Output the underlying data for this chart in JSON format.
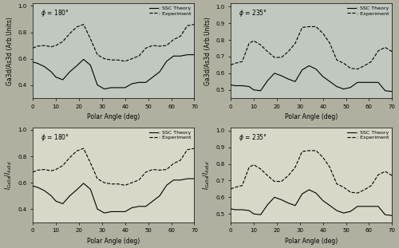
{
  "bg_color": "#b0b0a0",
  "top_bg": "#c0c8c0",
  "bottom_bg": "#d8d8c8",
  "panels": [
    {
      "phi": "180",
      "ylabel": "Ga3d/As3d (Arb.Units)",
      "ylim": [
        0.3,
        1.02
      ],
      "yticks": [
        0.4,
        0.6,
        0.8,
        1.0
      ],
      "row": 0,
      "col": 0,
      "theory_x": [
        0,
        2,
        5,
        8,
        10,
        13,
        16,
        19,
        22,
        25,
        28,
        31,
        34,
        37,
        40,
        43,
        46,
        49,
        52,
        55,
        58,
        61,
        64,
        67,
        70
      ],
      "theory_y": [
        0.575,
        0.565,
        0.54,
        0.5,
        0.46,
        0.44,
        0.5,
        0.545,
        0.595,
        0.55,
        0.4,
        0.37,
        0.38,
        0.38,
        0.38,
        0.41,
        0.42,
        0.42,
        0.46,
        0.5,
        0.58,
        0.62,
        0.62,
        0.63,
        0.63
      ],
      "exp_x": [
        0,
        2,
        5,
        8,
        10,
        13,
        16,
        19,
        22,
        25,
        28,
        31,
        34,
        37,
        40,
        43,
        46,
        49,
        52,
        55,
        58,
        61,
        64,
        67,
        70
      ],
      "exp_y": [
        0.68,
        0.695,
        0.7,
        0.69,
        0.7,
        0.73,
        0.79,
        0.84,
        0.86,
        0.75,
        0.63,
        0.6,
        0.59,
        0.59,
        0.58,
        0.6,
        0.62,
        0.68,
        0.7,
        0.695,
        0.7,
        0.745,
        0.77,
        0.85,
        0.86
      ]
    },
    {
      "phi": "235",
      "ylabel": "Ga3d/As3d (Arb.Units)",
      "ylim": [
        0.45,
        1.02
      ],
      "yticks": [
        0.5,
        0.6,
        0.7,
        0.8,
        0.9,
        1.0
      ],
      "row": 0,
      "col": 1,
      "theory_x": [
        0,
        2,
        5,
        8,
        10,
        13,
        16,
        19,
        22,
        25,
        28,
        31,
        34,
        37,
        40,
        43,
        46,
        49,
        52,
        55,
        58,
        61,
        64,
        67,
        70
      ],
      "theory_y": [
        0.53,
        0.525,
        0.525,
        0.52,
        0.5,
        0.495,
        0.555,
        0.6,
        0.585,
        0.565,
        0.55,
        0.62,
        0.645,
        0.625,
        0.58,
        0.55,
        0.52,
        0.505,
        0.515,
        0.545,
        0.545,
        0.545,
        0.545,
        0.495,
        0.49
      ],
      "exp_x": [
        0,
        2,
        5,
        8,
        10,
        13,
        16,
        19,
        22,
        25,
        28,
        31,
        34,
        37,
        40,
        43,
        46,
        49,
        52,
        55,
        58,
        61,
        64,
        67,
        70
      ],
      "exp_y": [
        0.65,
        0.66,
        0.67,
        0.78,
        0.795,
        0.77,
        0.73,
        0.695,
        0.695,
        0.73,
        0.78,
        0.875,
        0.88,
        0.88,
        0.84,
        0.78,
        0.68,
        0.66,
        0.63,
        0.625,
        0.645,
        0.67,
        0.735,
        0.755,
        0.73
      ]
    },
    {
      "phi": "180",
      "ylabel": "I_{Ga3d}/I_{As3d}",
      "ylim": [
        0.3,
        1.02
      ],
      "yticks": [
        0.4,
        0.6,
        0.8,
        1.0
      ],
      "row": 1,
      "col": 0,
      "theory_x": [
        0,
        2,
        5,
        8,
        10,
        13,
        16,
        19,
        22,
        25,
        28,
        31,
        34,
        37,
        40,
        43,
        46,
        49,
        52,
        55,
        58,
        61,
        64,
        67,
        70
      ],
      "theory_y": [
        0.575,
        0.565,
        0.54,
        0.5,
        0.46,
        0.44,
        0.5,
        0.545,
        0.595,
        0.55,
        0.4,
        0.37,
        0.38,
        0.38,
        0.38,
        0.41,
        0.42,
        0.42,
        0.46,
        0.5,
        0.58,
        0.62,
        0.62,
        0.63,
        0.63
      ],
      "exp_x": [
        0,
        2,
        5,
        8,
        10,
        13,
        16,
        19,
        22,
        25,
        28,
        31,
        34,
        37,
        40,
        43,
        46,
        49,
        52,
        55,
        58,
        61,
        64,
        67,
        70
      ],
      "exp_y": [
        0.68,
        0.695,
        0.7,
        0.69,
        0.7,
        0.73,
        0.79,
        0.84,
        0.86,
        0.75,
        0.63,
        0.6,
        0.59,
        0.59,
        0.58,
        0.6,
        0.62,
        0.68,
        0.7,
        0.695,
        0.7,
        0.745,
        0.77,
        0.85,
        0.86
      ]
    },
    {
      "phi": "235",
      "ylabel": "I_{Ga3d}/I_{As3d}",
      "ylim": [
        0.45,
        1.02
      ],
      "yticks": [
        0.5,
        0.6,
        0.7,
        0.8,
        0.9,
        1.0
      ],
      "row": 1,
      "col": 1,
      "theory_x": [
        0,
        2,
        5,
        8,
        10,
        13,
        16,
        19,
        22,
        25,
        28,
        31,
        34,
        37,
        40,
        43,
        46,
        49,
        52,
        55,
        58,
        61,
        64,
        67,
        70
      ],
      "theory_y": [
        0.53,
        0.525,
        0.525,
        0.52,
        0.5,
        0.495,
        0.555,
        0.6,
        0.585,
        0.565,
        0.55,
        0.62,
        0.645,
        0.625,
        0.58,
        0.55,
        0.52,
        0.505,
        0.515,
        0.545,
        0.545,
        0.545,
        0.545,
        0.495,
        0.49
      ],
      "exp_x": [
        0,
        2,
        5,
        8,
        10,
        13,
        16,
        19,
        22,
        25,
        28,
        31,
        34,
        37,
        40,
        43,
        46,
        49,
        52,
        55,
        58,
        61,
        64,
        67,
        70
      ],
      "exp_y": [
        0.65,
        0.66,
        0.67,
        0.78,
        0.795,
        0.77,
        0.73,
        0.695,
        0.695,
        0.73,
        0.78,
        0.875,
        0.88,
        0.88,
        0.84,
        0.78,
        0.68,
        0.66,
        0.63,
        0.625,
        0.645,
        0.67,
        0.735,
        0.755,
        0.73
      ]
    }
  ],
  "xlabel": "Polar Angle (deg)",
  "xlim": [
    0,
    70
  ],
  "xticks": [
    0,
    10,
    20,
    30,
    40,
    50,
    60,
    70
  ]
}
